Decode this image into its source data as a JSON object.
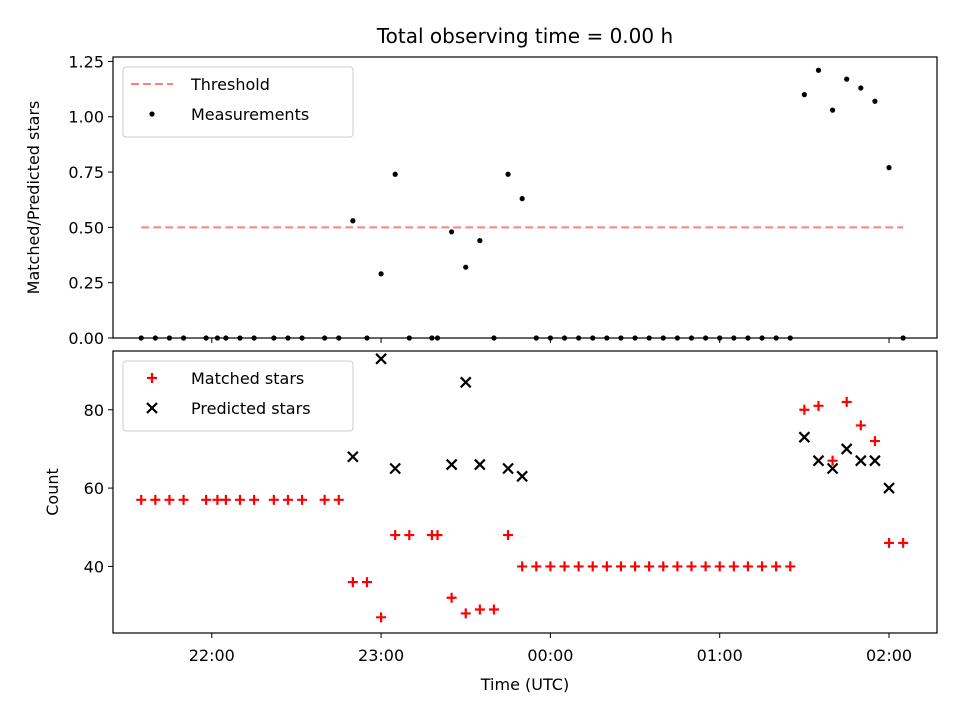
{
  "chart_data": {
    "title": "Total observing time = 0.00 h",
    "xlabel": "Time (UTC)",
    "x_ticks": [
      "22:00",
      "23:00",
      "00:00",
      "01:00",
      "02:00"
    ],
    "x_range": [
      "21:25",
      "02:17"
    ],
    "panels": [
      {
        "type": "scatter",
        "ylabel": "Matched/Predicted stars",
        "ylim": [
          0,
          1.27
        ],
        "y_ticks": [
          0.0,
          0.25,
          0.5,
          0.75,
          1.0,
          1.25
        ],
        "y_tick_labels": [
          "0.00",
          "0.25",
          "0.50",
          "0.75",
          "1.00",
          "1.25"
        ],
        "legend_position": "upper-left",
        "threshold": {
          "name": "Threshold",
          "value": 0.5,
          "x_start": "21:35",
          "x_end": "02:05",
          "color": "#ff7f7f",
          "style": "dashed"
        },
        "series": [
          {
            "name": "Measurements",
            "color": "#000000",
            "marker": "dot",
            "points": [
              [
                "21:35",
                0
              ],
              [
                "21:40",
                0
              ],
              [
                "21:45",
                0
              ],
              [
                "21:50",
                0
              ],
              [
                "21:58",
                0
              ],
              [
                "22:02",
                0
              ],
              [
                "22:05",
                0
              ],
              [
                "22:10",
                0
              ],
              [
                "22:15",
                0
              ],
              [
                "22:22",
                0
              ],
              [
                "22:27",
                0
              ],
              [
                "22:32",
                0
              ],
              [
                "22:40",
                0
              ],
              [
                "22:45",
                0
              ],
              [
                "22:50",
                0.53
              ],
              [
                "22:55",
                0
              ],
              [
                "23:00",
                0.29
              ],
              [
                "23:05",
                0.74
              ],
              [
                "23:10",
                0
              ],
              [
                "23:18",
                0
              ],
              [
                "23:20",
                0
              ],
              [
                "23:25",
                0.48
              ],
              [
                "23:30",
                0.32
              ],
              [
                "23:35",
                0.44
              ],
              [
                "23:40",
                0
              ],
              [
                "23:45",
                0.74
              ],
              [
                "23:50",
                0.63
              ],
              [
                "23:55",
                0
              ],
              [
                "00:00",
                0
              ],
              [
                "00:05",
                0
              ],
              [
                "00:10",
                0
              ],
              [
                "00:15",
                0
              ],
              [
                "00:20",
                0
              ],
              [
                "00:25",
                0
              ],
              [
                "00:30",
                0
              ],
              [
                "00:35",
                0
              ],
              [
                "00:40",
                0
              ],
              [
                "00:45",
                0
              ],
              [
                "00:50",
                0
              ],
              [
                "00:55",
                0
              ],
              [
                "01:00",
                0
              ],
              [
                "01:05",
                0
              ],
              [
                "01:10",
                0
              ],
              [
                "01:15",
                0
              ],
              [
                "01:20",
                0
              ],
              [
                "01:25",
                0
              ],
              [
                "01:30",
                1.1
              ],
              [
                "01:35",
                1.21
              ],
              [
                "01:40",
                1.03
              ],
              [
                "01:45",
                1.17
              ],
              [
                "01:50",
                1.13
              ],
              [
                "01:55",
                1.07
              ],
              [
                "02:00",
                0.77
              ],
              [
                "02:05",
                0
              ]
            ]
          }
        ]
      },
      {
        "type": "scatter",
        "ylabel": "Count",
        "ylim": [
          23,
          95
        ],
        "y_ticks": [
          40,
          60,
          80
        ],
        "y_tick_labels": [
          "40",
          "60",
          "80"
        ],
        "legend_position": "upper-left",
        "series": [
          {
            "name": "Matched stars",
            "color": "#ff0000",
            "marker": "plus",
            "points": [
              [
                "21:35",
                57
              ],
              [
                "21:40",
                57
              ],
              [
                "21:45",
                57
              ],
              [
                "21:50",
                57
              ],
              [
                "21:58",
                57
              ],
              [
                "22:02",
                57
              ],
              [
                "22:05",
                57
              ],
              [
                "22:10",
                57
              ],
              [
                "22:15",
                57
              ],
              [
                "22:22",
                57
              ],
              [
                "22:27",
                57
              ],
              [
                "22:32",
                57
              ],
              [
                "22:40",
                57
              ],
              [
                "22:45",
                57
              ],
              [
                "22:50",
                36
              ],
              [
                "22:55",
                36
              ],
              [
                "23:00",
                27
              ],
              [
                "23:05",
                48
              ],
              [
                "23:10",
                48
              ],
              [
                "23:18",
                48
              ],
              [
                "23:20",
                48
              ],
              [
                "23:25",
                32
              ],
              [
                "23:30",
                28
              ],
              [
                "23:35",
                29
              ],
              [
                "23:40",
                29
              ],
              [
                "23:45",
                48
              ],
              [
                "23:50",
                40
              ],
              [
                "23:55",
                40
              ],
              [
                "00:00",
                40
              ],
              [
                "00:05",
                40
              ],
              [
                "00:10",
                40
              ],
              [
                "00:15",
                40
              ],
              [
                "00:20",
                40
              ],
              [
                "00:25",
                40
              ],
              [
                "00:30",
                40
              ],
              [
                "00:35",
                40
              ],
              [
                "00:40",
                40
              ],
              [
                "00:45",
                40
              ],
              [
                "00:50",
                40
              ],
              [
                "00:55",
                40
              ],
              [
                "01:00",
                40
              ],
              [
                "01:05",
                40
              ],
              [
                "01:10",
                40
              ],
              [
                "01:15",
                40
              ],
              [
                "01:20",
                40
              ],
              [
                "01:25",
                40
              ],
              [
                "01:30",
                80
              ],
              [
                "01:35",
                81
              ],
              [
                "01:40",
                67
              ],
              [
                "01:45",
                82
              ],
              [
                "01:50",
                76
              ],
              [
                "01:55",
                72
              ],
              [
                "02:00",
                46
              ],
              [
                "02:05",
                46
              ]
            ]
          },
          {
            "name": "Predicted stars",
            "color": "#000000",
            "marker": "x",
            "points": [
              [
                "22:50",
                68
              ],
              [
                "23:00",
                93
              ],
              [
                "23:05",
                65
              ],
              [
                "23:25",
                66
              ],
              [
                "23:30",
                87
              ],
              [
                "23:35",
                66
              ],
              [
                "23:45",
                65
              ],
              [
                "23:50",
                63
              ],
              [
                "01:30",
                73
              ],
              [
                "01:35",
                67
              ],
              [
                "01:40",
                65
              ],
              [
                "01:45",
                70
              ],
              [
                "01:50",
                67
              ],
              [
                "01:55",
                67
              ],
              [
                "02:00",
                60
              ]
            ]
          }
        ]
      }
    ]
  }
}
